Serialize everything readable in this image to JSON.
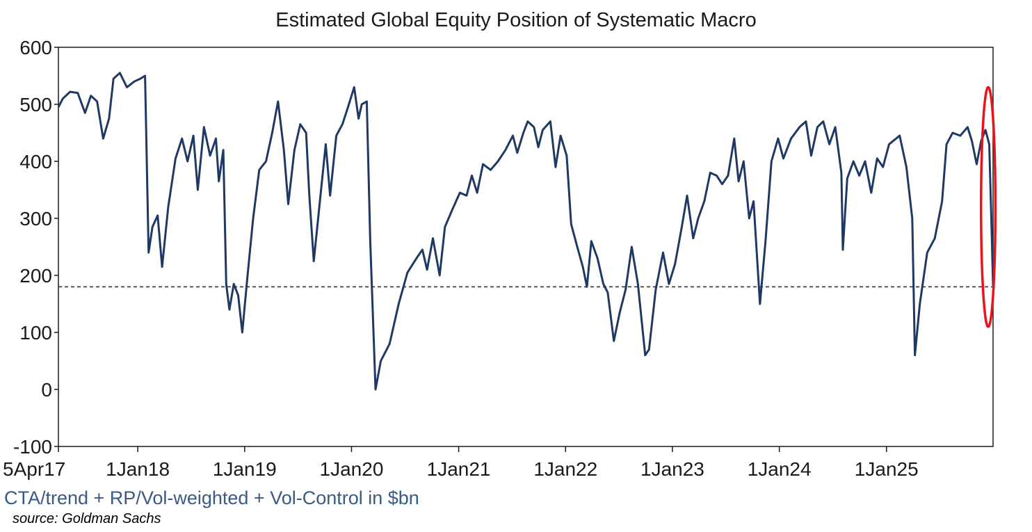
{
  "chart_data": {
    "type": "line",
    "title": "Estimated Global Equity Position of Systematic Macro",
    "subtitle": "CTA/trend + RP/Vol-weighted + Vol-Control in $bn",
    "source": "source: Goldman Sachs",
    "ylim": [
      -100,
      600
    ],
    "xlim": [
      "2017-04-05",
      "2025-12-31"
    ],
    "y_ticks": [
      600,
      500,
      400,
      300,
      200,
      100,
      0,
      -100
    ],
    "x_ticks": [
      {
        "label": "5Apr17",
        "date": "2017-04-05"
      },
      {
        "label": "1Jan18",
        "date": "2018-01-01"
      },
      {
        "label": "1Jan19",
        "date": "2019-01-01"
      },
      {
        "label": "1Jan20",
        "date": "2020-01-01"
      },
      {
        "label": "1Jan21",
        "date": "2021-01-01"
      },
      {
        "label": "1Jan22",
        "date": "2022-01-01"
      },
      {
        "label": "1Jan23",
        "date": "2023-01-01"
      },
      {
        "label": "1Jan24",
        "date": "2024-01-01"
      },
      {
        "label": "1Jan25",
        "date": "2025-01-01"
      }
    ],
    "reference_line": {
      "y": 180,
      "style": "dashed"
    },
    "highlight": {
      "shape": "ellipse",
      "color": "#e8141b",
      "x_range": [
        "2025-11-20",
        "2026-01-08"
      ],
      "y_range": [
        110,
        530
      ]
    },
    "grid": false,
    "series": [
      {
        "color": "#1f3864",
        "points": [
          [
            "2017-04-05",
            495
          ],
          [
            "2017-04-20",
            510
          ],
          [
            "2017-05-15",
            522
          ],
          [
            "2017-06-10",
            520
          ],
          [
            "2017-07-05",
            485
          ],
          [
            "2017-07-25",
            515
          ],
          [
            "2017-08-15",
            505
          ],
          [
            "2017-09-05",
            440
          ],
          [
            "2017-09-25",
            475
          ],
          [
            "2017-10-10",
            545
          ],
          [
            "2017-11-01",
            555
          ],
          [
            "2017-11-25",
            530
          ],
          [
            "2017-12-20",
            540
          ],
          [
            "2018-01-10",
            545
          ],
          [
            "2018-01-26",
            550
          ],
          [
            "2018-02-07",
            240
          ],
          [
            "2018-02-20",
            285
          ],
          [
            "2018-03-10",
            305
          ],
          [
            "2018-03-25",
            215
          ],
          [
            "2018-04-15",
            320
          ],
          [
            "2018-05-10",
            405
          ],
          [
            "2018-06-01",
            440
          ],
          [
            "2018-06-20",
            400
          ],
          [
            "2018-07-10",
            445
          ],
          [
            "2018-07-25",
            350
          ],
          [
            "2018-08-15",
            460
          ],
          [
            "2018-09-05",
            410
          ],
          [
            "2018-09-25",
            440
          ],
          [
            "2018-10-05",
            365
          ],
          [
            "2018-10-20",
            420
          ],
          [
            "2018-10-30",
            185
          ],
          [
            "2018-11-10",
            140
          ],
          [
            "2018-11-25",
            185
          ],
          [
            "2018-12-10",
            165
          ],
          [
            "2018-12-24",
            100
          ],
          [
            "2019-01-10",
            195
          ],
          [
            "2019-01-30",
            300
          ],
          [
            "2019-02-20",
            385
          ],
          [
            "2019-03-15",
            400
          ],
          [
            "2019-04-05",
            450
          ],
          [
            "2019-04-25",
            505
          ],
          [
            "2019-05-15",
            420
          ],
          [
            "2019-05-30",
            325
          ],
          [
            "2019-06-20",
            420
          ],
          [
            "2019-07-10",
            465
          ],
          [
            "2019-07-30",
            450
          ],
          [
            "2019-08-10",
            340
          ],
          [
            "2019-08-25",
            225
          ],
          [
            "2019-09-15",
            330
          ],
          [
            "2019-10-05",
            430
          ],
          [
            "2019-10-20",
            340
          ],
          [
            "2019-11-10",
            445
          ],
          [
            "2019-12-01",
            465
          ],
          [
            "2019-12-20",
            495
          ],
          [
            "2020-01-10",
            530
          ],
          [
            "2020-01-25",
            475
          ],
          [
            "2020-02-05",
            500
          ],
          [
            "2020-02-22",
            505
          ],
          [
            "2020-03-05",
            260
          ],
          [
            "2020-03-23",
            0
          ],
          [
            "2020-04-10",
            50
          ],
          [
            "2020-05-10",
            80
          ],
          [
            "2020-06-10",
            150
          ],
          [
            "2020-07-10",
            205
          ],
          [
            "2020-08-10",
            230
          ],
          [
            "2020-08-30",
            245
          ],
          [
            "2020-09-15",
            210
          ],
          [
            "2020-10-05",
            265
          ],
          [
            "2020-10-28",
            200
          ],
          [
            "2020-11-15",
            285
          ],
          [
            "2020-12-10",
            315
          ],
          [
            "2021-01-05",
            345
          ],
          [
            "2021-01-28",
            340
          ],
          [
            "2021-02-15",
            375
          ],
          [
            "2021-03-05",
            345
          ],
          [
            "2021-03-25",
            395
          ],
          [
            "2021-04-20",
            385
          ],
          [
            "2021-05-15",
            400
          ],
          [
            "2021-06-10",
            420
          ],
          [
            "2021-07-05",
            445
          ],
          [
            "2021-07-20",
            415
          ],
          [
            "2021-08-10",
            450
          ],
          [
            "2021-08-25",
            470
          ],
          [
            "2021-09-15",
            460
          ],
          [
            "2021-09-30",
            425
          ],
          [
            "2021-10-15",
            455
          ],
          [
            "2021-11-10",
            470
          ],
          [
            "2021-11-28",
            390
          ],
          [
            "2021-12-15",
            445
          ],
          [
            "2022-01-05",
            410
          ],
          [
            "2022-01-20",
            290
          ],
          [
            "2022-02-10",
            250
          ],
          [
            "2022-03-01",
            215
          ],
          [
            "2022-03-15",
            180
          ],
          [
            "2022-03-30",
            260
          ],
          [
            "2022-04-20",
            230
          ],
          [
            "2022-05-10",
            185
          ],
          [
            "2022-05-25",
            170
          ],
          [
            "2022-06-15",
            85
          ],
          [
            "2022-07-05",
            135
          ],
          [
            "2022-07-25",
            175
          ],
          [
            "2022-08-15",
            250
          ],
          [
            "2022-09-05",
            185
          ],
          [
            "2022-09-30",
            60
          ],
          [
            "2022-10-13",
            70
          ],
          [
            "2022-11-05",
            175
          ],
          [
            "2022-11-30",
            240
          ],
          [
            "2022-12-20",
            185
          ],
          [
            "2023-01-10",
            220
          ],
          [
            "2023-02-02",
            285
          ],
          [
            "2023-02-20",
            340
          ],
          [
            "2023-03-13",
            265
          ],
          [
            "2023-03-30",
            300
          ],
          [
            "2023-04-20",
            330
          ],
          [
            "2023-05-10",
            380
          ],
          [
            "2023-06-01",
            375
          ],
          [
            "2023-06-20",
            360
          ],
          [
            "2023-07-10",
            375
          ],
          [
            "2023-07-31",
            440
          ],
          [
            "2023-08-15",
            365
          ],
          [
            "2023-09-01",
            400
          ],
          [
            "2023-09-20",
            300
          ],
          [
            "2023-10-05",
            330
          ],
          [
            "2023-10-27",
            150
          ],
          [
            "2023-11-15",
            260
          ],
          [
            "2023-12-05",
            400
          ],
          [
            "2023-12-28",
            440
          ],
          [
            "2024-01-15",
            405
          ],
          [
            "2024-02-10",
            440
          ],
          [
            "2024-03-10",
            460
          ],
          [
            "2024-04-01",
            470
          ],
          [
            "2024-04-19",
            410
          ],
          [
            "2024-05-10",
            460
          ],
          [
            "2024-05-30",
            470
          ],
          [
            "2024-06-20",
            430
          ],
          [
            "2024-07-10",
            460
          ],
          [
            "2024-07-31",
            380
          ],
          [
            "2024-08-05",
            245
          ],
          [
            "2024-08-20",
            370
          ],
          [
            "2024-09-10",
            400
          ],
          [
            "2024-09-30",
            375
          ],
          [
            "2024-10-20",
            400
          ],
          [
            "2024-11-10",
            345
          ],
          [
            "2024-11-30",
            405
          ],
          [
            "2024-12-20",
            390
          ],
          [
            "2025-01-10",
            430
          ],
          [
            "2025-02-15",
            445
          ],
          [
            "2025-03-10",
            390
          ],
          [
            "2025-03-30",
            300
          ],
          [
            "2025-04-08",
            60
          ],
          [
            "2025-04-25",
            150
          ],
          [
            "2025-05-20",
            240
          ],
          [
            "2025-06-15",
            265
          ],
          [
            "2025-07-10",
            330
          ],
          [
            "2025-07-25",
            430
          ],
          [
            "2025-08-15",
            450
          ],
          [
            "2025-09-10",
            445
          ],
          [
            "2025-10-05",
            460
          ],
          [
            "2025-10-20",
            435
          ],
          [
            "2025-11-05",
            395
          ],
          [
            "2025-11-20",
            435
          ],
          [
            "2025-12-05",
            455
          ],
          [
            "2025-12-18",
            430
          ],
          [
            "2025-12-25",
            300
          ],
          [
            "2025-12-31",
            182
          ]
        ]
      }
    ]
  }
}
